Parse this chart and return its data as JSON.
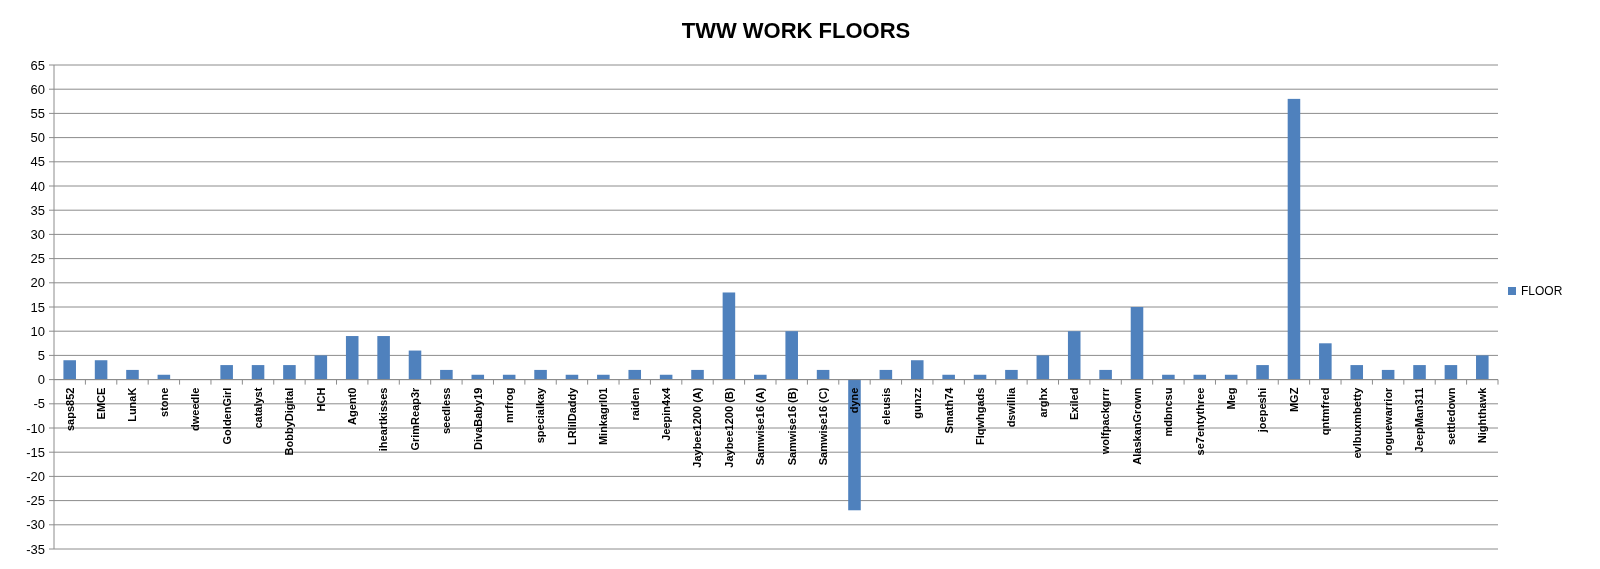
{
  "chart_data": {
    "type": "bar",
    "title": "TWW WORK FLOORS",
    "categories": [
      "saps852",
      "EMCE",
      "LunaK",
      "stone",
      "dweedle",
      "GoldenGirl",
      "catalyst",
      "BobbyDigital",
      "HCH",
      "Agent0",
      "iheartkisses",
      "GrimReap3r",
      "seedless",
      "DivaBaby19",
      "mrfrog",
      "specialkay",
      "LRlilDaddy",
      "Minkagrl01",
      "raiden",
      "Jeepin4x4",
      "Jaybee1200 (A)",
      "Jaybee1200 (B)",
      "Samwise16 (A)",
      "Samwise16 (B)",
      "Samwise16 (C)",
      "dyne",
      "eleusis",
      "gunzz",
      "Smath74",
      "Flqwhgads",
      "dswillia",
      "arghx",
      "Exiled",
      "wolfpackgrrr",
      "AlaskanGrown",
      "mdbncsu",
      "se7entythree",
      "Meg",
      "joepeshi",
      "MGZ",
      "qntmfred",
      "evlbuxmbetty",
      "roguewarrior",
      "JeepMan311",
      "settledown",
      "Nighthawk"
    ],
    "series": [
      {
        "name": "FLOOR",
        "color": "#4f81bd",
        "values": [
          4,
          4,
          2,
          1,
          0,
          3,
          3,
          3,
          5,
          9,
          9,
          6,
          2,
          1,
          1,
          2,
          1,
          1,
          2,
          1,
          2,
          18,
          1,
          10,
          2,
          -27,
          2,
          4,
          1,
          1,
          2,
          5,
          10,
          2,
          15,
          1,
          1,
          1,
          3,
          58,
          7.5,
          3,
          2,
          3,
          3,
          5
        ]
      }
    ],
    "ylim": [
      -35,
      65
    ],
    "yticks": [
      -35,
      -30,
      -25,
      -20,
      -15,
      -10,
      -5,
      0,
      5,
      10,
      15,
      20,
      25,
      30,
      35,
      40,
      45,
      50,
      55,
      60,
      65
    ],
    "grid": "y",
    "legend": "right"
  }
}
